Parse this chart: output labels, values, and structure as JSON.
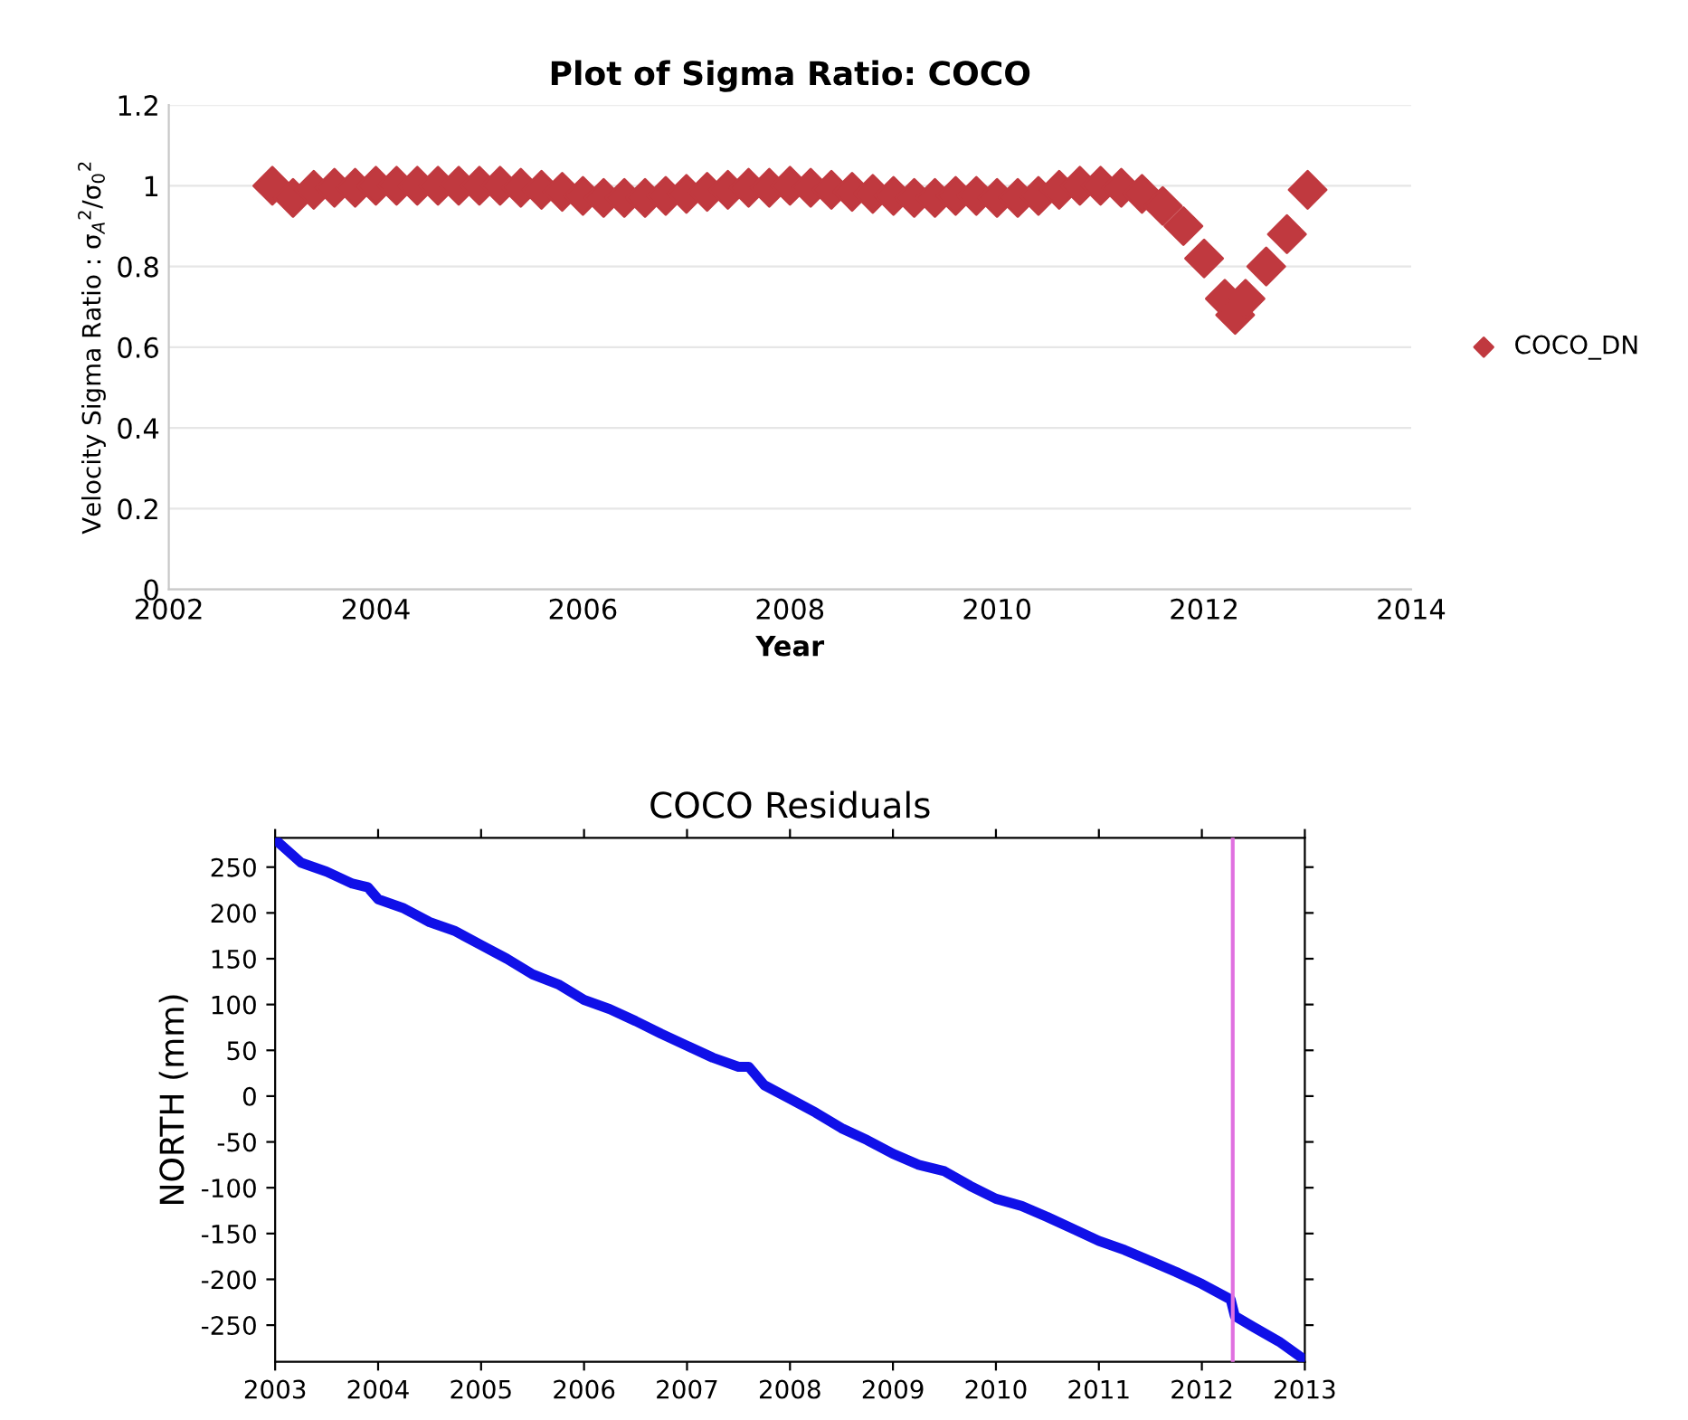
{
  "chart_data": [
    {
      "type": "scatter",
      "title": "Plot of Sigma Ratio: COCO",
      "xlabel": "Year",
      "ylabel": "Velocity Sigma Ratio : σ$_{A}$$^{2}$/σ$_{0}$$^{2}$",
      "x": [
        2003.0,
        2003.2,
        2003.4,
        2003.6,
        2003.8,
        2004.0,
        2004.2,
        2004.4,
        2004.6,
        2004.8,
        2005.0,
        2005.2,
        2005.4,
        2005.6,
        2005.8,
        2006.0,
        2006.2,
        2006.4,
        2006.6,
        2006.8,
        2007.0,
        2007.2,
        2007.4,
        2007.6,
        2007.8,
        2008.0,
        2008.2,
        2008.4,
        2008.6,
        2008.8,
        2009.0,
        2009.2,
        2009.4,
        2009.6,
        2009.8,
        2010.0,
        2010.2,
        2010.4,
        2010.6,
        2010.8,
        2011.0,
        2011.2,
        2011.4,
        2011.6,
        2011.8,
        2012.0,
        2012.2,
        2012.3,
        2012.4,
        2012.6,
        2012.8,
        2013.0
      ],
      "series": [
        {
          "name": "COCO_DN",
          "color": "#c0393f",
          "values": [
            1.0,
            0.97,
            0.99,
            0.995,
            0.995,
            1.0,
            1.0,
            1.0,
            1.0,
            1.0,
            1.0,
            1.0,
            0.995,
            0.99,
            0.985,
            0.975,
            0.97,
            0.97,
            0.97,
            0.975,
            0.98,
            0.985,
            0.99,
            0.995,
            0.995,
            1.0,
            0.995,
            0.99,
            0.985,
            0.98,
            0.975,
            0.97,
            0.97,
            0.975,
            0.975,
            0.97,
            0.97,
            0.975,
            0.99,
            1.0,
            1.0,
            0.995,
            0.98,
            0.95,
            0.9,
            0.82,
            0.72,
            0.68,
            0.72,
            0.8,
            0.88,
            0.99
          ]
        }
      ],
      "marker": "diamond",
      "xlim": [
        2002,
        2014
      ],
      "xticks": [
        2002,
        2004,
        2006,
        2008,
        2010,
        2012,
        2014
      ],
      "ylim": [
        0,
        1.2
      ],
      "yticks": [
        0,
        0.2,
        0.4,
        0.6,
        0.8,
        1,
        1.2
      ],
      "grid": "y",
      "legend": "right"
    },
    {
      "type": "line",
      "title": "COCO Residuals",
      "ylabel": "NORTH (mm)",
      "x": [
        2003.0,
        2003.25,
        2003.5,
        2003.75,
        2003.9,
        2004.0,
        2004.25,
        2004.5,
        2004.75,
        2005.0,
        2005.25,
        2005.5,
        2005.75,
        2006.0,
        2006.25,
        2006.5,
        2006.75,
        2007.0,
        2007.25,
        2007.5,
        2007.6,
        2007.75,
        2008.0,
        2008.25,
        2008.5,
        2008.75,
        2009.0,
        2009.25,
        2009.5,
        2009.75,
        2010.0,
        2010.25,
        2010.5,
        2010.75,
        2011.0,
        2011.25,
        2011.5,
        2011.75,
        2012.0,
        2012.28,
        2012.32,
        2012.5,
        2012.75,
        2013.0
      ],
      "series": [
        {
          "color": "#1010e8",
          "values": [
            280,
            255,
            245,
            232,
            228,
            215,
            205,
            190,
            180,
            165,
            150,
            133,
            122,
            105,
            95,
            82,
            68,
            55,
            42,
            32,
            32,
            12,
            -3,
            -18,
            -35,
            -48,
            -63,
            -75,
            -82,
            -98,
            -112,
            -120,
            -132,
            -145,
            -158,
            -168,
            -180,
            -192,
            -205,
            -222,
            -240,
            -252,
            -268,
            -288
          ]
        }
      ],
      "xlim": [
        2003,
        2013
      ],
      "xticks": [
        2003,
        2004,
        2005,
        2006,
        2007,
        2008,
        2009,
        2010,
        2011,
        2012,
        2013
      ],
      "ylim": [
        -290,
        282
      ],
      "yticks": [
        -250,
        -200,
        -150,
        -100,
        -50,
        0,
        50,
        100,
        150,
        200,
        250
      ],
      "grid": false,
      "ref_lines": [
        {
          "axis": "x",
          "value": 2012.3,
          "color": "#e070e0"
        }
      ]
    }
  ]
}
